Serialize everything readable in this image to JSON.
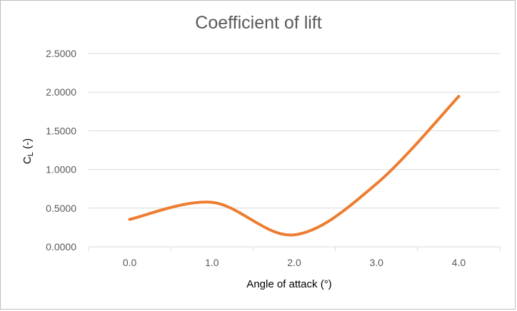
{
  "chart_data": {
    "type": "line",
    "title": "Coefficient of lift",
    "xlabel": "Angle of attack (°)",
    "ylabel_main": "C",
    "ylabel_sub": "L",
    "ylabel_suffix": " (-)",
    "x": [
      0.0,
      1.0,
      2.0,
      3.0,
      4.0
    ],
    "x_tick_labels": [
      "0.0",
      "1.0",
      "2.0",
      "3.0",
      "4.0"
    ],
    "series": [
      {
        "values": [
          0.355,
          0.575,
          0.155,
          0.815,
          1.945
        ]
      }
    ],
    "ylim": [
      0,
      2.5
    ],
    "y_ticks": [
      0,
      0.5,
      1.0,
      1.5,
      2.0,
      2.5
    ],
    "y_tick_labels": [
      "0.0000",
      "0.5000",
      "1.0000",
      "1.5000",
      "2.0000",
      "2.5000"
    ],
    "smoothed": true,
    "grid": true,
    "legend": "none",
    "colors": {
      "series": "#ed7d31",
      "grid": "#d9d9d9",
      "text": "#595959"
    }
  }
}
